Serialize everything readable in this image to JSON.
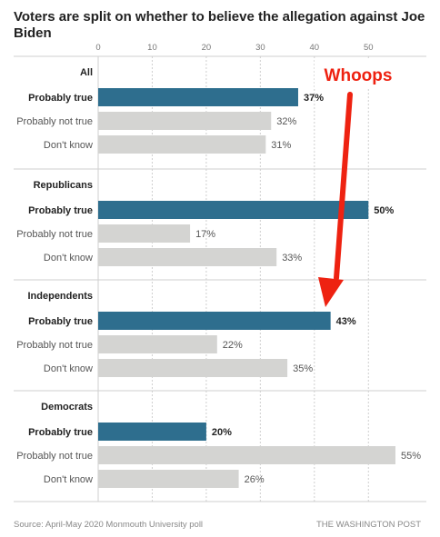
{
  "title_line1": "Voters are split on whether to believe the allegation against Joe",
  "title_line2": "Biden",
  "source": "Source: April-May 2020 Monmouth University poll",
  "publisher": "THE WASHINGTON POST",
  "annotation": "Whoops",
  "colors": {
    "highlight": "#2e6e8e",
    "muted": "#d4d4d2",
    "annotation": "#ee2211",
    "grid": "#cfcfcf"
  },
  "chart_data": {
    "type": "bar",
    "orientation": "horizontal",
    "title": "Voters are split on whether to believe the allegation against Joe Biden",
    "xlim": [
      0,
      55
    ],
    "xticks": [
      0,
      10,
      20,
      30,
      40,
      50
    ],
    "value_suffix": "%",
    "groups": [
      {
        "name": "All",
        "bars": [
          {
            "label": "Probably true",
            "value": 37,
            "highlight": true
          },
          {
            "label": "Probably not true",
            "value": 32,
            "highlight": false
          },
          {
            "label": "Don't know",
            "value": 31,
            "highlight": false
          }
        ]
      },
      {
        "name": "Republicans",
        "bars": [
          {
            "label": "Probably true",
            "value": 50,
            "highlight": true
          },
          {
            "label": "Probably not true",
            "value": 17,
            "highlight": false
          },
          {
            "label": "Don't know",
            "value": 33,
            "highlight": false
          }
        ]
      },
      {
        "name": "Independents",
        "bars": [
          {
            "label": "Probably true",
            "value": 43,
            "highlight": true
          },
          {
            "label": "Probably not true",
            "value": 22,
            "highlight": false
          },
          {
            "label": "Don't know",
            "value": 35,
            "highlight": false
          }
        ]
      },
      {
        "name": "Democrats",
        "bars": [
          {
            "label": "Probably true",
            "value": 20,
            "highlight": true
          },
          {
            "label": "Probably not true",
            "value": 55,
            "highlight": false
          },
          {
            "label": "Don't know",
            "value": 26,
            "highlight": false
          }
        ]
      }
    ]
  }
}
